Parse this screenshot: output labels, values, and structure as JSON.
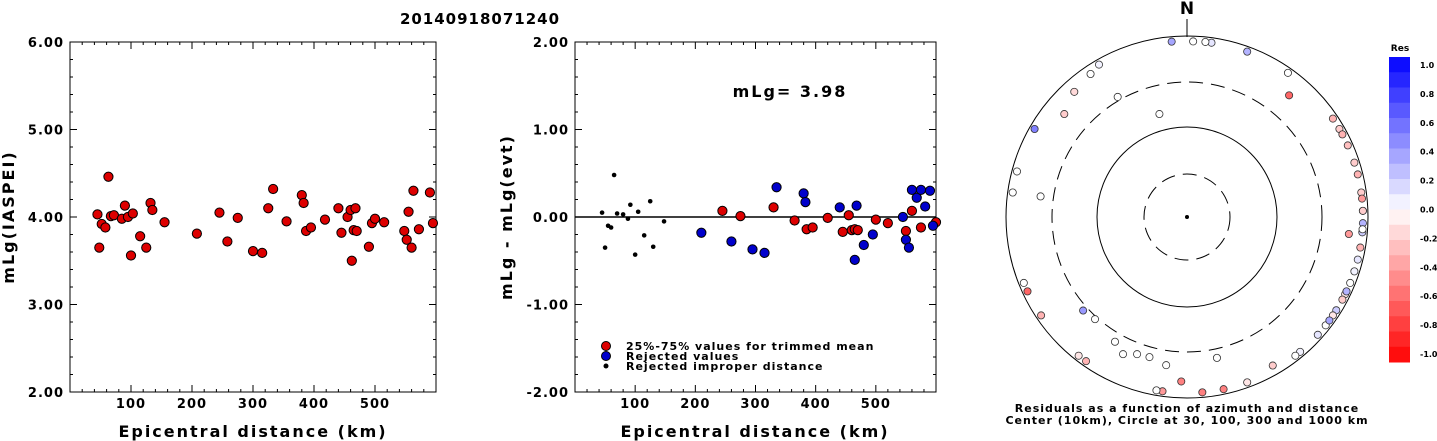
{
  "chart_data": [
    {
      "type": "scatter",
      "title": "20140918071240",
      "xlabel": "Epicentral distance (km)",
      "ylabel": "mLg(IASPEI)",
      "xlim": [
        0,
        600
      ],
      "ylim": [
        2.0,
        6.0
      ],
      "x_ticks": [
        "100",
        "200",
        "300",
        "400",
        "500"
      ],
      "y_ticks": [
        "2.00",
        "3.00",
        "4.00",
        "5.00",
        "6.00"
      ],
      "series": [
        {
          "color": "#dd0000",
          "x": [
            45,
            48,
            52,
            58,
            63,
            67,
            72,
            85,
            90,
            95,
            100,
            103,
            115,
            125,
            132,
            135,
            155,
            208,
            245,
            258,
            275,
            300,
            315,
            325,
            333,
            355,
            380,
            383,
            387,
            395,
            418,
            440,
            445,
            455,
            460,
            462,
            465,
            468,
            470,
            490,
            495,
            500,
            515,
            548,
            552,
            555,
            560,
            563,
            572,
            590,
            595
          ],
          "y": [
            4.03,
            3.65,
            3.92,
            3.88,
            4.46,
            4.01,
            4.02,
            3.98,
            4.13,
            4.0,
            3.56,
            4.04,
            3.78,
            3.65,
            4.16,
            4.08,
            3.94,
            3.81,
            4.05,
            3.72,
            3.99,
            3.61,
            3.59,
            4.1,
            4.32,
            3.95,
            4.25,
            4.16,
            3.84,
            3.88,
            3.97,
            4.1,
            3.82,
            4.0,
            4.08,
            3.5,
            3.85,
            4.1,
            3.84,
            3.66,
            3.93,
            3.98,
            3.94,
            3.84,
            3.74,
            4.06,
            3.65,
            4.3,
            3.86,
            4.28,
            3.93
          ]
        }
      ]
    },
    {
      "type": "scatter",
      "xlabel": "Epicentral distance (km)",
      "ylabel": "mLg - mLg(evt)",
      "annotation": "mLg= 3.98",
      "xlim": [
        0,
        600
      ],
      "ylim": [
        -2.0,
        2.0
      ],
      "x_ticks": [
        "100",
        "200",
        "300",
        "400",
        "500"
      ],
      "y_ticks": [
        "-2.00",
        "-1.00",
        "0.00",
        "1.00",
        "2.00"
      ],
      "legend_position": "bottom-left",
      "series": [
        {
          "name": "25%-75% values for trimmed mean",
          "color": "#dd0000",
          "x": [
            245,
            275,
            330,
            365,
            385,
            395,
            420,
            445,
            455,
            460,
            465,
            470,
            500,
            520,
            550,
            560,
            575,
            600
          ],
          "y": [
            0.07,
            0.01,
            0.11,
            -0.04,
            -0.14,
            -0.12,
            -0.01,
            -0.17,
            0.02,
            -0.15,
            -0.14,
            -0.15,
            -0.03,
            -0.07,
            -0.16,
            0.07,
            -0.12,
            -0.06
          ]
        },
        {
          "name": "Rejected values",
          "color": "#0000cc",
          "x": [
            210,
            260,
            295,
            315,
            335,
            380,
            383,
            440,
            465,
            468,
            480,
            495,
            545,
            550,
            555,
            560,
            568,
            575,
            582,
            590,
            595
          ],
          "y": [
            -0.18,
            -0.28,
            -0.37,
            -0.41,
            0.34,
            0.27,
            0.17,
            0.11,
            -0.49,
            0.13,
            -0.32,
            -0.2,
            0.0,
            -0.26,
            -0.35,
            0.31,
            0.22,
            0.31,
            0.12,
            0.3,
            -0.1
          ]
        },
        {
          "name": "Rejected improper distance",
          "color": "#000000",
          "x": [
            45,
            50,
            55,
            60,
            65,
            70,
            80,
            88,
            92,
            100,
            105,
            115,
            125,
            130,
            148
          ],
          "y": [
            0.05,
            -0.35,
            -0.1,
            -0.12,
            0.48,
            0.04,
            0.03,
            -0.02,
            0.14,
            -0.43,
            0.06,
            -0.21,
            0.18,
            -0.34,
            -0.05
          ]
        }
      ]
    },
    {
      "type": "scatter",
      "title": "N",
      "caption_line1": "Residuals as a function of azimuth and distance",
      "caption_line2": "Center (10km), Circle at 30, 100, 300 and 1000 km",
      "colorbar_label": "Res",
      "colorbar_ticks": [
        "1.0",
        "0.8",
        "0.6",
        "0.4",
        "0.2",
        "0.0",
        "-0.2",
        "-0.4",
        "-0.6",
        "-0.8",
        "-1.0"
      ],
      "points": [
        {
          "az": 20,
          "dist": 1000,
          "res": 0.3
        },
        {
          "az": 8,
          "dist": 900,
          "res": 0.1
        },
        {
          "az": 355,
          "dist": 950,
          "res": 0.35
        },
        {
          "az": 2,
          "dist": 870,
          "res": 0.0
        },
        {
          "az": 6,
          "dist": 880,
          "res": 0.0
        },
        {
          "az": 330,
          "dist": 880,
          "res": 0.05
        },
        {
          "az": 318,
          "dist": 720,
          "res": -0.15
        },
        {
          "az": 310,
          "dist": 580,
          "res": -0.2
        },
        {
          "az": 300,
          "dist": 880,
          "res": 0.5
        },
        {
          "az": 285,
          "dist": 1000,
          "res": 0.0
        },
        {
          "az": 278,
          "dist": 420,
          "res": 0.0
        },
        {
          "az": 326,
          "dist": 800,
          "res": 0.0
        },
        {
          "az": 330,
          "dist": 330,
          "res": 0.0
        },
        {
          "az": 345,
          "dist": 150,
          "res": 0.0
        },
        {
          "az": 40,
          "dist": 560,
          "res": -0.6
        },
        {
          "az": 35,
          "dist": 900,
          "res": 0.0
        },
        {
          "az": 60,
          "dist": 880,
          "res": -0.2
        },
        {
          "az": 56,
          "dist": 980,
          "res": -0.3
        },
        {
          "az": 62,
          "dist": 1000,
          "res": -0.3
        },
        {
          "az": 66,
          "dist": 1050,
          "res": -0.25
        },
        {
          "az": 72,
          "dist": 1000,
          "res": -0.2
        },
        {
          "az": 76,
          "dist": 930,
          "res": -0.3
        },
        {
          "az": 82,
          "dist": 960,
          "res": -0.2
        },
        {
          "az": 84,
          "dist": 1100,
          "res": -0.4
        },
        {
          "az": 88,
          "dist": 1200,
          "res": 0.5
        },
        {
          "az": 92,
          "dist": 1180,
          "res": 0.3
        },
        {
          "az": 95,
          "dist": 1150,
          "res": 0.2
        },
        {
          "az": 88,
          "dist": 1050,
          "res": -0.2
        },
        {
          "az": 94,
          "dist": 1020,
          "res": 0.0
        },
        {
          "az": 96,
          "dist": 620,
          "res": -0.4
        },
        {
          "az": 100,
          "dist": 930,
          "res": -0.3
        },
        {
          "az": 104,
          "dist": 1050,
          "res": 0.1
        },
        {
          "az": 108,
          "dist": 1050,
          "res": 0.05
        },
        {
          "az": 112,
          "dist": 1080,
          "res": 0.0
        },
        {
          "az": 116,
          "dist": 1000,
          "res": -0.1
        },
        {
          "az": 118,
          "dist": 920,
          "res": -0.2
        },
        {
          "az": 122,
          "dist": 950,
          "res": 0.2
        },
        {
          "az": 124,
          "dist": 1000,
          "res": -0.1
        },
        {
          "az": 128,
          "dist": 940,
          "res": 0.0
        },
        {
          "az": 140,
          "dist": 900,
          "res": 0.05
        },
        {
          "az": 150,
          "dist": 780,
          "res": -0.2
        },
        {
          "az": 160,
          "dist": 1000,
          "res": -0.1
        },
        {
          "az": 168,
          "dist": 900,
          "res": -0.5
        },
        {
          "az": 175,
          "dist": 960,
          "res": -0.5
        },
        {
          "az": 188,
          "dist": 950,
          "res": -0.4
        },
        {
          "az": 190,
          "dist": 1020,
          "res": 0.0
        },
        {
          "az": 182,
          "dist": 650,
          "res": -0.5
        },
        {
          "az": 195,
          "dist": 390,
          "res": 0.0
        },
        {
          "az": 188,
          "dist": 440,
          "res": 0.0
        },
        {
          "az": 200,
          "dist": 400,
          "res": 0.0
        },
        {
          "az": 205,
          "dist": 460,
          "res": 0.0
        },
        {
          "az": 210,
          "dist": 380,
          "res": 0.0
        },
        {
          "az": 168,
          "dist": 380,
          "res": 0.0
        },
        {
          "az": 215,
          "dist": 880,
          "res": -0.3
        },
        {
          "az": 218,
          "dist": 920,
          "res": -0.1
        },
        {
          "az": 222,
          "dist": 320,
          "res": 0.0
        },
        {
          "az": 228,
          "dist": 340,
          "res": 0.4
        },
        {
          "az": 245,
          "dist": 1000,
          "res": -0.6
        },
        {
          "az": 248,
          "dist": 880,
          "res": 0.0
        },
        {
          "az": 278,
          "dist": 1150,
          "res": 0.0
        },
        {
          "az": 236,
          "dist": 1020,
          "res": -0.3
        },
        {
          "az": 126,
          "dist": 1080,
          "res": 0.35
        },
        {
          "az": 132,
          "dist": 1000,
          "res": 0.1
        },
        {
          "az": 115,
          "dist": 1180,
          "res": 0.3
        },
        {
          "az": 142,
          "dist": 1100,
          "res": 0.0
        }
      ]
    }
  ]
}
